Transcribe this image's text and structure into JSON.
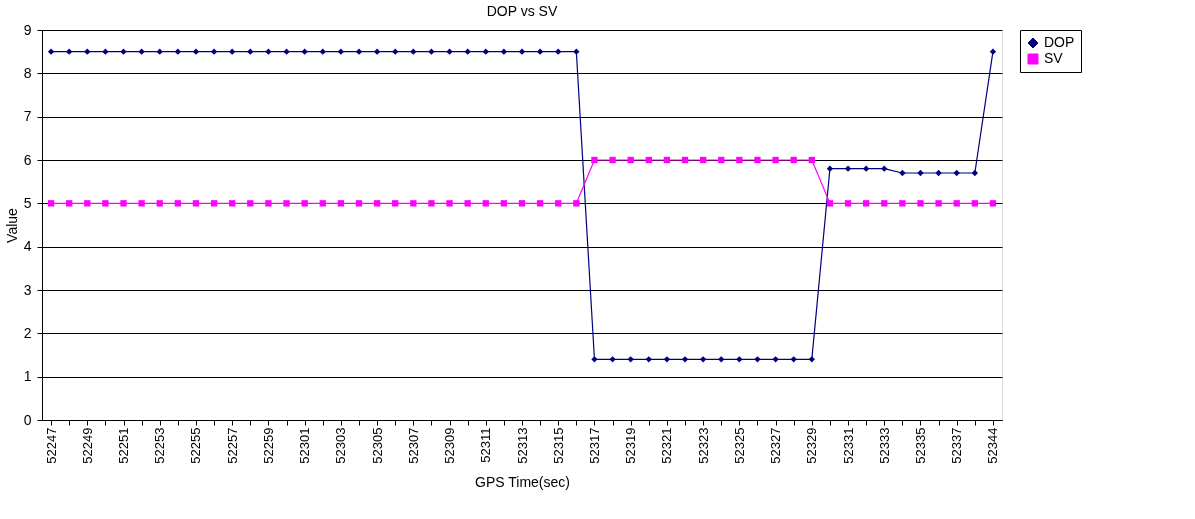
{
  "chart_data": {
    "type": "line",
    "title": "DOP vs SV",
    "xlabel": "GPS Time(sec)",
    "ylabel": "Value",
    "categories": [
      "52247",
      null,
      "52249",
      null,
      "52251",
      null,
      "52253",
      null,
      "52255",
      null,
      "52257",
      null,
      "52259",
      null,
      "52301",
      null,
      "52303",
      null,
      "52305",
      null,
      "52307",
      null,
      "52309",
      null,
      "52311",
      null,
      "52313",
      null,
      "52315",
      null,
      "52317",
      null,
      "52319",
      null,
      "52321",
      null,
      "52323",
      null,
      "52325",
      null,
      "52327",
      null,
      "52329",
      null,
      "52331",
      null,
      "52333",
      null,
      "52335",
      null,
      "52337",
      null,
      "52344"
    ],
    "series": [
      {
        "name": "DOP",
        "color": "#000080",
        "marker": "diamond",
        "values": [
          8.5,
          8.5,
          8.5,
          8.5,
          8.5,
          8.5,
          8.5,
          8.5,
          8.5,
          8.5,
          8.5,
          8.5,
          8.5,
          8.5,
          8.5,
          8.5,
          8.5,
          8.5,
          8.5,
          8.5,
          8.5,
          8.5,
          8.5,
          8.5,
          8.5,
          8.5,
          8.5,
          8.5,
          8.5,
          8.5,
          1.4,
          1.4,
          1.4,
          1.4,
          1.4,
          1.4,
          1.4,
          1.4,
          1.4,
          1.4,
          1.4,
          1.4,
          1.4,
          5.8,
          5.8,
          5.8,
          5.8,
          5.7,
          5.7,
          5.7,
          5.7,
          5.7,
          8.5
        ]
      },
      {
        "name": "SV",
        "color": "#ff00ff",
        "marker": "square",
        "values": [
          5,
          5,
          5,
          5,
          5,
          5,
          5,
          5,
          5,
          5,
          5,
          5,
          5,
          5,
          5,
          5,
          5,
          5,
          5,
          5,
          5,
          5,
          5,
          5,
          5,
          5,
          5,
          5,
          5,
          5,
          6,
          6,
          6,
          6,
          6,
          6,
          6,
          6,
          6,
          6,
          6,
          6,
          6,
          5,
          5,
          5,
          5,
          5,
          5,
          5,
          5,
          5,
          5
        ]
      }
    ],
    "ylim": [
      0,
      9
    ],
    "yticks": [
      0,
      1,
      2,
      3,
      4,
      5,
      6,
      7,
      8,
      9
    ],
    "grid": "y",
    "legend": "right",
    "line_style": "solid"
  }
}
